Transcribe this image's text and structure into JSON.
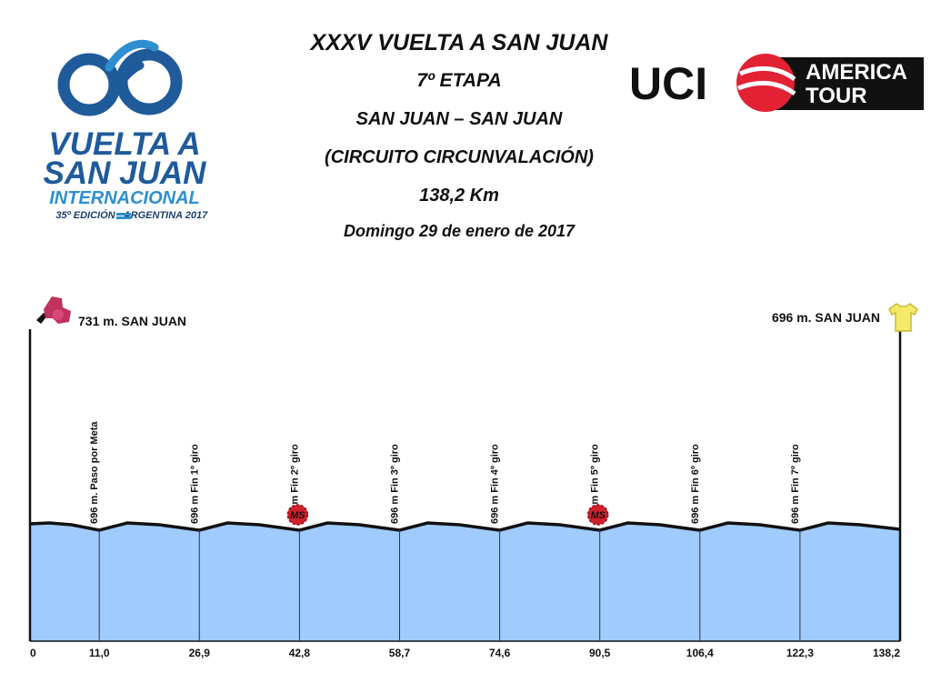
{
  "header": {
    "title": "XXXV VUELTA A SAN JUAN",
    "stage": "7º ETAPA",
    "route": "SAN JUAN – SAN JUAN",
    "circuit": "(CIRCUITO CIRCUNVALACIÓN)",
    "distance": "138,2 Km",
    "date": "Domingo 29 de enero de 2017"
  },
  "logos": {
    "race": {
      "line1": "VUELTA A",
      "line2": "SAN JUAN",
      "line3": "INTERNACIONAL",
      "line4_left": "35º EDICIÓN",
      "line4_right": "ARGENTINA 2017"
    },
    "uci": {
      "uci": "UCI",
      "america": "AMERICA",
      "tour": "TOUR"
    }
  },
  "colors": {
    "fill": "#9fcbff",
    "profile_line": "#111111",
    "sprint_badge": "#d21f2c",
    "start_icon": "#c2325f",
    "finish_jersey": "#f4ea6a",
    "logo_blue": "#1f5b9b",
    "logo_navy": "#1d3f6e",
    "logo_cyan": "#2d8fd0",
    "uci_red": "#e22133"
  },
  "chart_data": {
    "type": "area",
    "title": "",
    "xlabel": "",
    "ylabel": "",
    "x_unit": "km",
    "y_unit": "m",
    "xlim": [
      0,
      138.2
    ],
    "ylim": [
      0,
      731
    ],
    "x_ticks": [
      "0",
      "11,0",
      "26,9",
      "42,8",
      "58,7",
      "74,6",
      "90,5",
      "106,4",
      "122,3",
      "138,2"
    ],
    "series": [
      {
        "x": [
          0,
          11.0,
          26.9,
          42.8,
          58.7,
          74.6,
          90.5,
          106.4,
          122.3,
          138.2
        ],
        "y": [
          731,
          696,
          696,
          696,
          696,
          696,
          696,
          696,
          696,
          696
        ]
      }
    ],
    "start_label": "731 m. SAN JUAN",
    "finish_label": "696 m. SAN JUAN",
    "waypoints": [
      {
        "km": 11.0,
        "label": "696  m. Paso por Meta",
        "sprint": false
      },
      {
        "km": 26.9,
        "label": "696  m Fin 1º giro",
        "sprint": false
      },
      {
        "km": 42.8,
        "label": "696  m Fin 2º giro",
        "sprint": true
      },
      {
        "km": 58.7,
        "label": "696  m Fin 3º giro",
        "sprint": false
      },
      {
        "km": 74.6,
        "label": "696  m Fin 4º giro",
        "sprint": false
      },
      {
        "km": 90.5,
        "label": "696  m Fin 5º giro",
        "sprint": true
      },
      {
        "km": 106.4,
        "label": "696  m Fin 6º giro",
        "sprint": false
      },
      {
        "km": 122.3,
        "label": "696  m Fin 7º giro",
        "sprint": false
      }
    ],
    "sprint_badge_label": "MS"
  }
}
